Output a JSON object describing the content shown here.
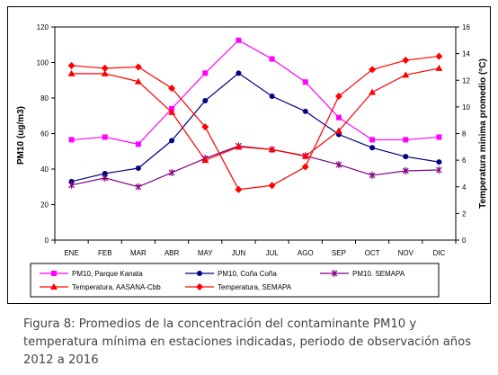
{
  "chart_data": {
    "type": "line",
    "categories": [
      "ENE",
      "FEB",
      "MAR",
      "ABR",
      "MAY",
      "JUN",
      "JUL",
      "AGO",
      "SEP",
      "OCT",
      "NOV",
      "DIC"
    ],
    "ylabel": "PM10 (ug/m3)",
    "y2label": "Temperatura minima promedio (°C)",
    "ylim": [
      0,
      120
    ],
    "y2lim": [
      0,
      16
    ],
    "yticks": [
      "0",
      "20",
      "40",
      "60",
      "80",
      "100",
      "120"
    ],
    "y2ticks": [
      "0",
      "2",
      "4",
      "6",
      "8",
      "10",
      "12",
      "14",
      "16"
    ],
    "grid": false,
    "legend_position": "bottom",
    "series": [
      {
        "name": "PM10, Parque Kanata",
        "axis": "left",
        "color": "#ff00ff",
        "marker": "square",
        "values": [
          56.5,
          58,
          54,
          74,
          94,
          112.5,
          102,
          89,
          69,
          56.5,
          56.5,
          58
        ]
      },
      {
        "name": "PM10, Coña Coña",
        "axis": "left",
        "color": "#000080",
        "marker": "circle",
        "values": [
          33,
          37.5,
          40.5,
          56,
          78.5,
          94,
          81,
          72.5,
          59.5,
          52,
          47,
          44
        ]
      },
      {
        "name": "PM10. SEMAPA",
        "axis": "left",
        "color": "#800080",
        "marker": "star",
        "values": [
          31,
          35,
          30,
          38,
          46,
          53,
          51,
          47.5,
          42.5,
          36.5,
          39,
          39.5
        ]
      },
      {
        "name": "Temperatura, AASANA-Cbb",
        "axis": "right",
        "color": "#ff0000",
        "marker": "triangle",
        "values": [
          12.5,
          12.5,
          11.9,
          9.6,
          6.0,
          7.0,
          6.8,
          6.3,
          8.2,
          11.1,
          12.4,
          12.9
        ]
      },
      {
        "name": "Temperatura, SEMAPA",
        "axis": "right",
        "color": "#ff0000",
        "marker": "diamond",
        "values": [
          13.1,
          12.9,
          13.0,
          11.4,
          8.5,
          3.8,
          4.1,
          5.5,
          10.8,
          12.8,
          13.5,
          13.8
        ]
      }
    ]
  },
  "caption": "Figura 8: Promedios de la concentración del contaminante PM10 y temperatura mínima en estaciones indicadas, periodo de observación años 2012 a 2016"
}
